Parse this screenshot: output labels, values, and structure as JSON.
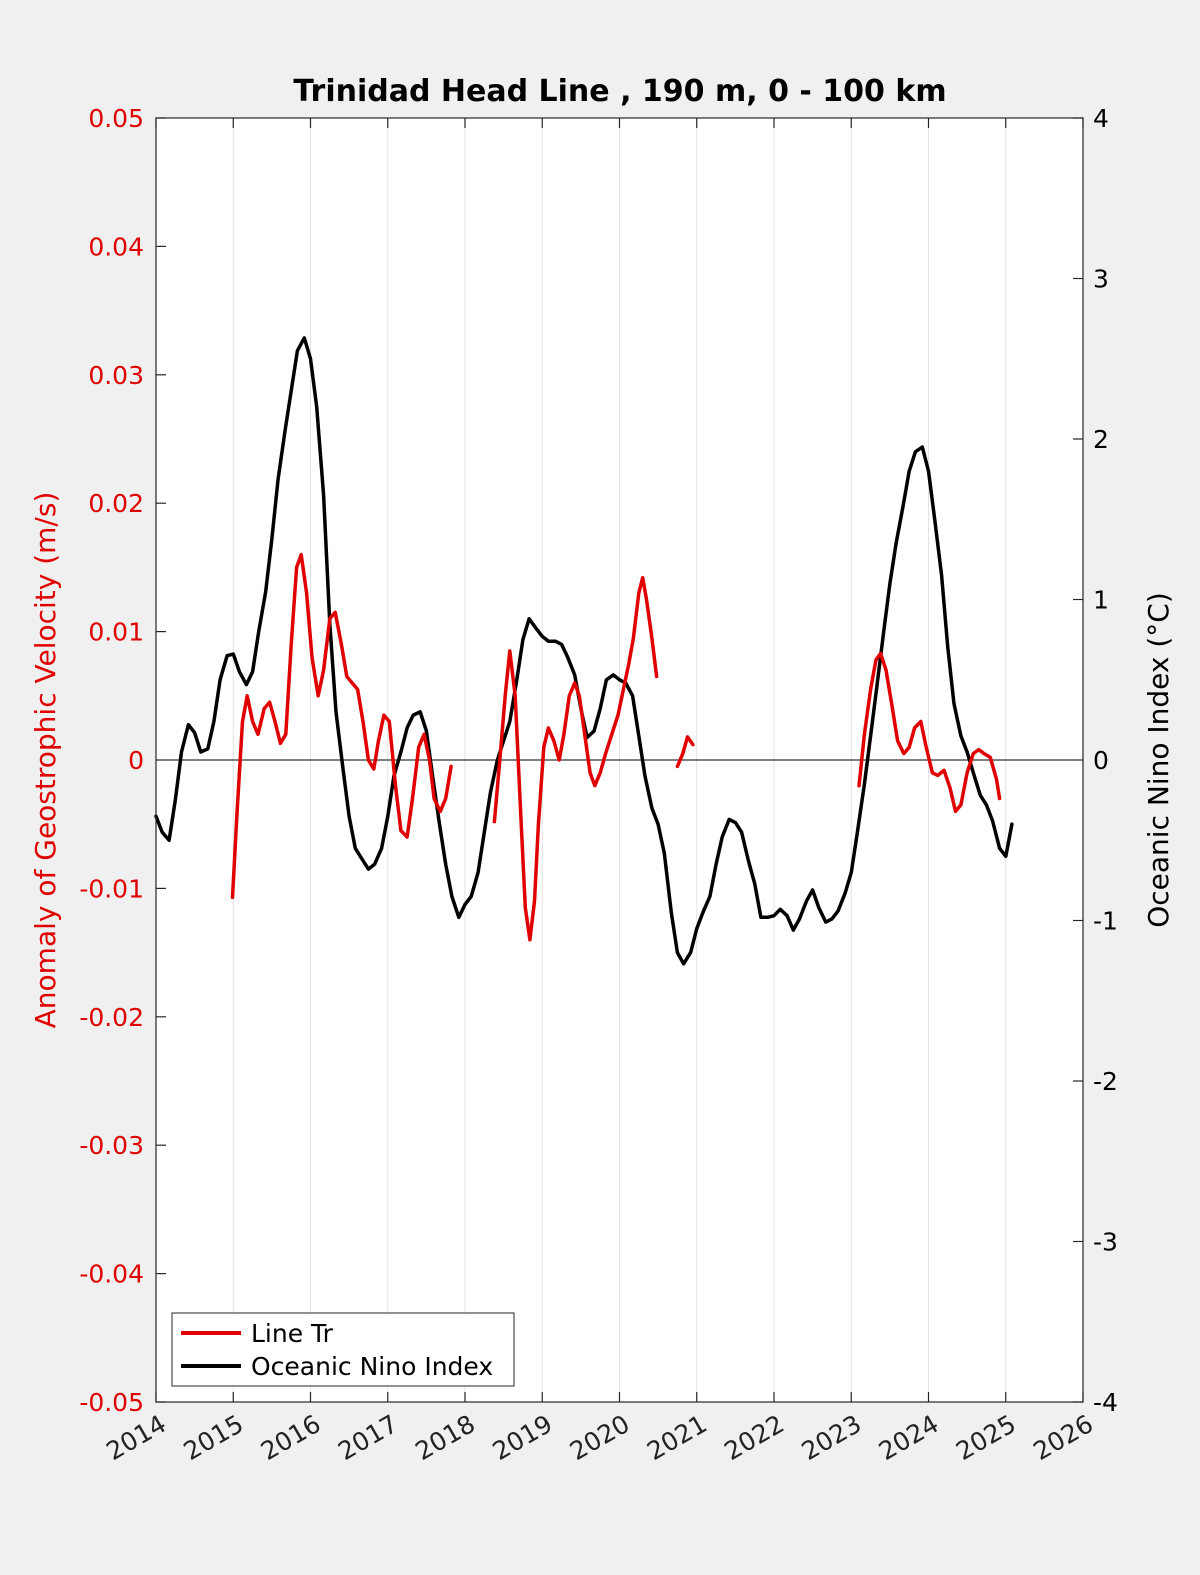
{
  "chart_data": {
    "type": "line",
    "title": "Trinidad Head Line , 190 m, 0 - 100 km",
    "ylabel_left": "Anomaly of Geostrophic Velocity (m/s)",
    "ylabel_right": "Oceanic Nino Index (°C)",
    "xlim": [
      2014,
      2026
    ],
    "ylim_left": [
      -0.05,
      0.05
    ],
    "ylim_right": [
      -4,
      4
    ],
    "x_ticks": [
      "2014",
      "2015",
      "2016",
      "2017",
      "2018",
      "2019",
      "2020",
      "2021",
      "2022",
      "2023",
      "2024",
      "2025",
      "2026"
    ],
    "y_ticks_left": [
      "0.05",
      "0.04",
      "0.03",
      "0.02",
      "0.01",
      "0",
      "-0.01",
      "-0.02",
      "-0.03",
      "-0.04",
      "-0.05"
    ],
    "y_ticks_right": [
      "4",
      "3",
      "2",
      "1",
      "0",
      "-1",
      "-2",
      "-3",
      "-4"
    ],
    "grid": "vertical",
    "legend_position": "bottom-left",
    "colors": {
      "line_tr": "#e00000",
      "oni": "#000000",
      "left_axis": "#e00000",
      "background": "#f0f0f0"
    },
    "series": [
      {
        "name": "Line Tr",
        "axis": "left",
        "segments": [
          [
            [
              2014.99,
              -0.0107
            ],
            [
              2015.05,
              -0.004
            ],
            [
              2015.12,
              0.003
            ],
            [
              2015.18,
              0.005
            ],
            [
              2015.25,
              0.003
            ],
            [
              2015.32,
              0.002
            ],
            [
              2015.4,
              0.004
            ],
            [
              2015.47,
              0.0045
            ],
            [
              2015.54,
              0.003
            ],
            [
              2015.61,
              0.0013
            ],
            [
              2015.68,
              0.002
            ],
            [
              2015.75,
              0.009
            ],
            [
              2015.82,
              0.015
            ],
            [
              2015.88,
              0.016
            ],
            [
              2015.95,
              0.013
            ],
            [
              2016.02,
              0.008
            ],
            [
              2016.1,
              0.005
            ],
            [
              2016.17,
              0.007
            ],
            [
              2016.25,
              0.011
            ],
            [
              2016.32,
              0.0115
            ],
            [
              2016.4,
              0.009
            ],
            [
              2016.47,
              0.0065
            ],
            [
              2016.54,
              0.006
            ],
            [
              2016.61,
              0.0055
            ],
            [
              2016.68,
              0.003
            ],
            [
              2016.75,
              0.0
            ],
            [
              2016.82,
              -0.0007
            ],
            [
              2016.88,
              0.0015
            ],
            [
              2016.95,
              0.0035
            ],
            [
              2017.02,
              0.003
            ],
            [
              2017.1,
              -0.002
            ],
            [
              2017.17,
              -0.0055
            ],
            [
              2017.25,
              -0.006
            ],
            [
              2017.32,
              -0.003
            ],
            [
              2017.4,
              0.001
            ],
            [
              2017.47,
              0.002
            ],
            [
              2017.54,
              0.0
            ],
            [
              2017.6,
              -0.003
            ],
            [
              2017.68,
              -0.004
            ],
            [
              2017.75,
              -0.003
            ],
            [
              2017.82,
              -0.0005
            ]
          ],
          [
            [
              2018.38,
              -0.0048
            ],
            [
              2018.45,
              0.0
            ],
            [
              2018.52,
              0.005
            ],
            [
              2018.58,
              0.0085
            ],
            [
              2018.65,
              0.005
            ],
            [
              2018.72,
              -0.004
            ],
            [
              2018.78,
              -0.0115
            ],
            [
              2018.84,
              -0.014
            ],
            [
              2018.9,
              -0.011
            ],
            [
              2018.95,
              -0.005
            ],
            [
              2019.02,
              0.001
            ],
            [
              2019.08,
              0.0025
            ],
            [
              2019.15,
              0.0015
            ],
            [
              2019.22,
              0.0
            ],
            [
              2019.28,
              0.002
            ],
            [
              2019.35,
              0.005
            ],
            [
              2019.42,
              0.006
            ],
            [
              2019.48,
              0.005
            ],
            [
              2019.55,
              0.002
            ],
            [
              2019.62,
              -0.001
            ],
            [
              2019.68,
              -0.002
            ],
            [
              2019.75,
              -0.001
            ],
            [
              2019.82,
              0.0005
            ],
            [
              2019.9,
              0.002
            ],
            [
              2019.98,
              0.0035
            ],
            [
              2020.05,
              0.0055
            ],
            [
              2020.12,
              0.0075
            ],
            [
              2020.18,
              0.0095
            ],
            [
              2020.25,
              0.013
            ],
            [
              2020.3,
              0.0142
            ],
            [
              2020.35,
              0.0125
            ],
            [
              2020.42,
              0.0095
            ],
            [
              2020.48,
              0.0065
            ]
          ],
          [
            [
              2020.75,
              -0.0005
            ],
            [
              2020.82,
              0.0005
            ],
            [
              2020.88,
              0.0018
            ],
            [
              2020.95,
              0.0012
            ]
          ],
          [
            [
              2023.1,
              -0.002
            ],
            [
              2023.17,
              0.002
            ],
            [
              2023.25,
              0.0055
            ],
            [
              2023.32,
              0.0078
            ],
            [
              2023.38,
              0.0083
            ],
            [
              2023.45,
              0.007
            ],
            [
              2023.52,
              0.0045
            ],
            [
              2023.6,
              0.0015
            ],
            [
              2023.68,
              0.0005
            ],
            [
              2023.75,
              0.001
            ],
            [
              2023.82,
              0.0025
            ],
            [
              2023.9,
              0.003
            ],
            [
              2023.97,
              0.001
            ],
            [
              2024.05,
              -0.001
            ],
            [
              2024.12,
              -0.0012
            ],
            [
              2024.2,
              -0.0008
            ],
            [
              2024.28,
              -0.0022
            ],
            [
              2024.35,
              -0.004
            ],
            [
              2024.42,
              -0.0035
            ],
            [
              2024.5,
              -0.001
            ],
            [
              2024.58,
              0.0005
            ],
            [
              2024.65,
              0.0008
            ],
            [
              2024.72,
              0.0005
            ],
            [
              2024.8,
              0.0002
            ],
            [
              2024.88,
              -0.0015
            ],
            [
              2024.92,
              -0.003
            ]
          ]
        ]
      },
      {
        "name": "Oceanic Nino Index",
        "axis": "right",
        "points": [
          [
            2014.0,
            -0.35
          ],
          [
            2014.08,
            -0.45
          ],
          [
            2014.17,
            -0.5
          ],
          [
            2014.25,
            -0.25
          ],
          [
            2014.33,
            0.05
          ],
          [
            2014.42,
            0.22
          ],
          [
            2014.5,
            0.17
          ],
          [
            2014.58,
            0.05
          ],
          [
            2014.67,
            0.07
          ],
          [
            2014.75,
            0.24
          ],
          [
            2014.83,
            0.5
          ],
          [
            2014.92,
            0.65
          ],
          [
            2015.0,
            0.66
          ],
          [
            2015.08,
            0.55
          ],
          [
            2015.17,
            0.47
          ],
          [
            2015.25,
            0.55
          ],
          [
            2015.33,
            0.8
          ],
          [
            2015.42,
            1.05
          ],
          [
            2015.5,
            1.38
          ],
          [
            2015.58,
            1.75
          ],
          [
            2015.67,
            2.05
          ],
          [
            2015.75,
            2.3
          ],
          [
            2015.83,
            2.55
          ],
          [
            2015.92,
            2.63
          ],
          [
            2016.0,
            2.5
          ],
          [
            2016.08,
            2.2
          ],
          [
            2016.17,
            1.65
          ],
          [
            2016.25,
            0.85
          ],
          [
            2016.33,
            0.3
          ],
          [
            2016.42,
            -0.05
          ],
          [
            2016.5,
            -0.35
          ],
          [
            2016.58,
            -0.55
          ],
          [
            2016.67,
            -0.62
          ],
          [
            2016.75,
            -0.68
          ],
          [
            2016.83,
            -0.65
          ],
          [
            2016.92,
            -0.55
          ],
          [
            2017.0,
            -0.35
          ],
          [
            2017.08,
            -0.1
          ],
          [
            2017.17,
            0.05
          ],
          [
            2017.25,
            0.2
          ],
          [
            2017.33,
            0.28
          ],
          [
            2017.42,
            0.3
          ],
          [
            2017.5,
            0.18
          ],
          [
            2017.58,
            -0.1
          ],
          [
            2017.67,
            -0.4
          ],
          [
            2017.75,
            -0.65
          ],
          [
            2017.83,
            -0.85
          ],
          [
            2017.92,
            -0.98
          ],
          [
            2018.0,
            -0.9
          ],
          [
            2018.08,
            -0.85
          ],
          [
            2018.17,
            -0.7
          ],
          [
            2018.25,
            -0.45
          ],
          [
            2018.33,
            -0.2
          ],
          [
            2018.42,
            0.0
          ],
          [
            2018.5,
            0.12
          ],
          [
            2018.58,
            0.24
          ],
          [
            2018.67,
            0.5
          ],
          [
            2018.75,
            0.75
          ],
          [
            2018.83,
            0.88
          ],
          [
            2018.92,
            0.82
          ],
          [
            2019.0,
            0.77
          ],
          [
            2019.08,
            0.74
          ],
          [
            2019.17,
            0.74
          ],
          [
            2019.25,
            0.72
          ],
          [
            2019.33,
            0.64
          ],
          [
            2019.42,
            0.53
          ],
          [
            2019.5,
            0.32
          ],
          [
            2019.58,
            0.14
          ],
          [
            2019.67,
            0.18
          ],
          [
            2019.75,
            0.32
          ],
          [
            2019.83,
            0.5
          ],
          [
            2019.92,
            0.53
          ],
          [
            2020.0,
            0.5
          ],
          [
            2020.08,
            0.48
          ],
          [
            2020.17,
            0.4
          ],
          [
            2020.25,
            0.15
          ],
          [
            2020.33,
            -0.1
          ],
          [
            2020.42,
            -0.3
          ],
          [
            2020.5,
            -0.4
          ],
          [
            2020.58,
            -0.58
          ],
          [
            2020.67,
            -0.95
          ],
          [
            2020.75,
            -1.2
          ],
          [
            2020.83,
            -1.27
          ],
          [
            2020.92,
            -1.2
          ],
          [
            2021.0,
            -1.05
          ],
          [
            2021.08,
            -0.95
          ],
          [
            2021.17,
            -0.85
          ],
          [
            2021.25,
            -0.65
          ],
          [
            2021.33,
            -0.48
          ],
          [
            2021.42,
            -0.37
          ],
          [
            2021.5,
            -0.39
          ],
          [
            2021.58,
            -0.45
          ],
          [
            2021.67,
            -0.63
          ],
          [
            2021.75,
            -0.77
          ],
          [
            2021.83,
            -0.98
          ],
          [
            2021.92,
            -0.98
          ],
          [
            2022.0,
            -0.97
          ],
          [
            2022.08,
            -0.93
          ],
          [
            2022.17,
            -0.97
          ],
          [
            2022.25,
            -1.06
          ],
          [
            2022.33,
            -0.99
          ],
          [
            2022.42,
            -0.88
          ],
          [
            2022.5,
            -0.81
          ],
          [
            2022.58,
            -0.92
          ],
          [
            2022.67,
            -1.01
          ],
          [
            2022.75,
            -0.99
          ],
          [
            2022.83,
            -0.94
          ],
          [
            2022.92,
            -0.83
          ],
          [
            2023.0,
            -0.7
          ],
          [
            2023.08,
            -0.45
          ],
          [
            2023.17,
            -0.15
          ],
          [
            2023.25,
            0.15
          ],
          [
            2023.33,
            0.45
          ],
          [
            2023.42,
            0.8
          ],
          [
            2023.5,
            1.1
          ],
          [
            2023.58,
            1.35
          ],
          [
            2023.67,
            1.58
          ],
          [
            2023.75,
            1.8
          ],
          [
            2023.83,
            1.92
          ],
          [
            2023.92,
            1.95
          ],
          [
            2024.0,
            1.8
          ],
          [
            2024.08,
            1.5
          ],
          [
            2024.17,
            1.15
          ],
          [
            2024.25,
            0.7
          ],
          [
            2024.33,
            0.35
          ],
          [
            2024.42,
            0.15
          ],
          [
            2024.5,
            0.05
          ],
          [
            2024.58,
            -0.08
          ],
          [
            2024.67,
            -0.22
          ],
          [
            2024.75,
            -0.28
          ],
          [
            2024.83,
            -0.38
          ],
          [
            2024.92,
            -0.55
          ],
          [
            2025.0,
            -0.6
          ],
          [
            2025.08,
            -0.4
          ]
        ]
      }
    ]
  }
}
